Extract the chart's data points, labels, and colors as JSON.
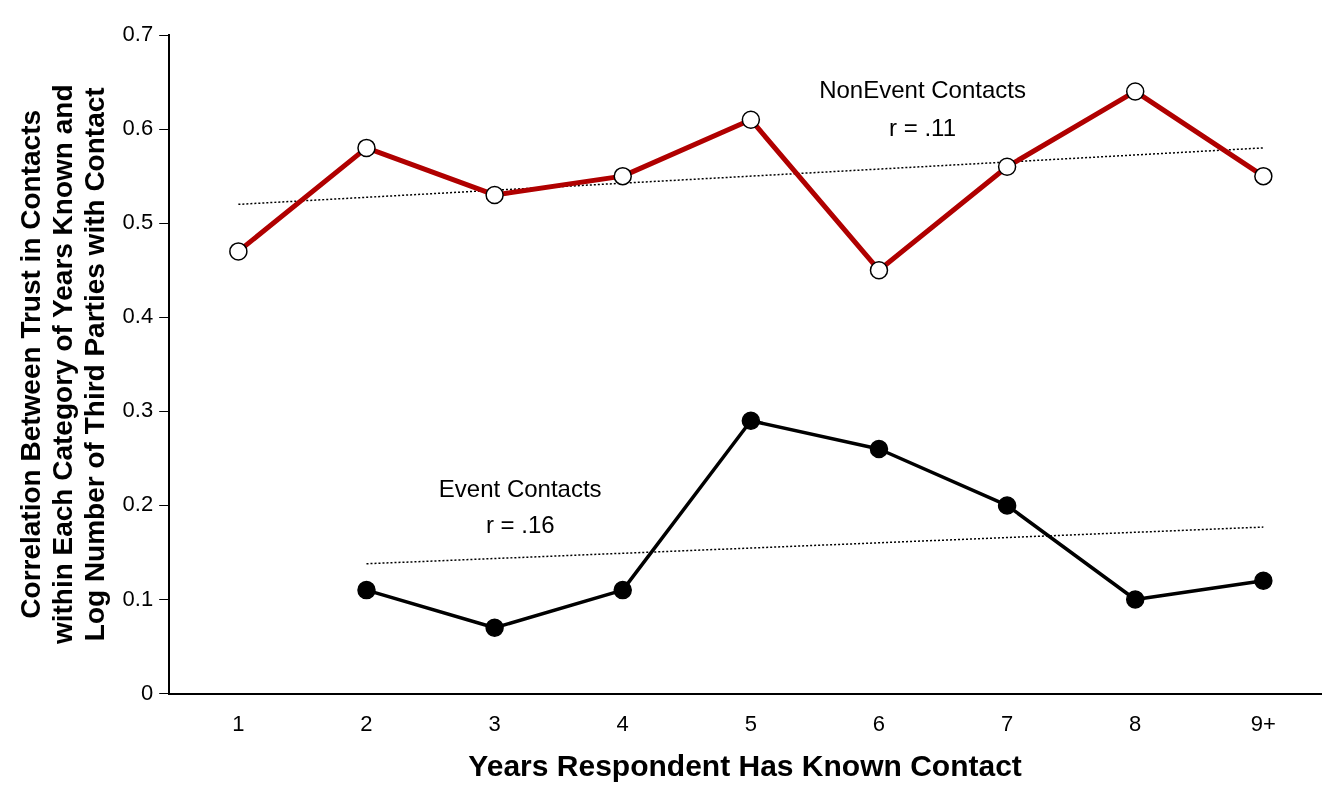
{
  "chart_data": {
    "type": "line",
    "xlabel": "Years Respondent Has Known Contact",
    "ylabel": "Correlation Between Trust in Contacts\nwithin Each Category of Years Known and\nLog Number of Third Parties with Contact",
    "categories": [
      "1",
      "2",
      "3",
      "4",
      "5",
      "6",
      "7",
      "8",
      "9+"
    ],
    "series": [
      {
        "name": "NonEvent Contacts",
        "color": "#b00000",
        "values": [
          0.47,
          0.58,
          0.53,
          0.55,
          0.61,
          0.45,
          0.56,
          0.64,
          0.55
        ]
      },
      {
        "name": "Event Contacts",
        "color": "#000000",
        "values": [
          null,
          0.11,
          0.07,
          0.11,
          0.29,
          0.26,
          0.2,
          0.1,
          0.12
        ]
      },
      {
        "type": "line",
        "color": "#000000",
        "line_style": "dotted",
        "marker": "none",
        "x": [
          "1",
          "9+"
        ],
        "values": [
          0.52,
          0.58
        ]
      },
      {
        "type": "line",
        "color": "#000000",
        "line_style": "dotted",
        "marker": "none",
        "x": [
          "2",
          "9+"
        ],
        "values": [
          0.138,
          0.177
        ]
      }
    ],
    "annotations": [
      "r = .11",
      "r = .16"
    ],
    "ylim": [
      0,
      0.7
    ],
    "yticks": [
      0,
      0.1,
      0.2,
      0.3,
      0.4,
      0.5,
      0.6,
      0.7
    ],
    "grid": false,
    "legend": false,
    "marker": "circle",
    "line_style": "solid"
  }
}
